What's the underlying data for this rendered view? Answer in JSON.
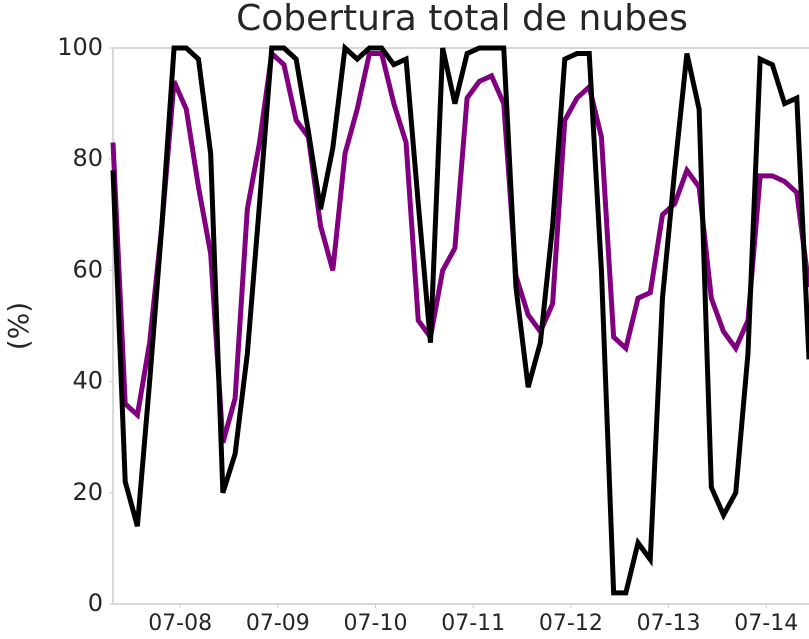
{
  "chart_data": {
    "type": "line",
    "title": "Cobertura total de nubes",
    "ylabel": "(%)",
    "x": [
      0.3125,
      0.4375,
      0.5625,
      0.6875,
      0.8125,
      0.9375,
      1.0625,
      1.1875,
      1.3125,
      1.4375,
      1.5625,
      1.6875,
      1.8125,
      1.9375,
      2.0625,
      2.1875,
      2.3125,
      2.4375,
      2.5625,
      2.6875,
      2.8125,
      2.9375,
      3.0625,
      3.1875,
      3.3125,
      3.4375,
      3.5625,
      3.6875,
      3.8125,
      3.9375,
      4.0625,
      4.1875,
      4.3125,
      4.4375,
      4.5625,
      4.6875,
      4.8125,
      4.9375,
      5.0625,
      5.1875,
      5.3125,
      5.4375,
      5.5625,
      5.6875,
      5.8125,
      5.9375,
      6.0625,
      6.1875,
      6.3125,
      6.4375,
      6.5625,
      6.6875,
      6.8125,
      6.9375,
      7.0625,
      7.1875,
      7.3125,
      7.4375
    ],
    "series": [
      {
        "color": "#800080",
        "values": [
          83,
          36,
          34,
          47,
          68,
          94,
          89,
          75,
          63,
          29,
          37,
          71,
          83,
          99,
          97,
          87,
          84,
          68,
          60,
          81,
          89,
          99,
          99,
          90,
          83,
          51,
          48,
          60,
          64,
          91,
          94,
          95,
          90,
          59,
          52,
          49,
          54,
          87,
          91,
          93,
          84,
          48,
          46,
          55,
          56,
          70,
          72,
          78,
          75,
          55,
          49,
          46,
          51,
          77,
          77,
          76,
          74,
          57
        ]
      },
      {
        "color": "#000000",
        "values": [
          78,
          22,
          14,
          40,
          68,
          100,
          100,
          98,
          81,
          20,
          27,
          45,
          72,
          100,
          100,
          98,
          85,
          71,
          82,
          100,
          98,
          100,
          100,
          97,
          98,
          72,
          47,
          100,
          90,
          99,
          100,
          100,
          100,
          57,
          39,
          47,
          68,
          98,
          99,
          99,
          60,
          2,
          2,
          11,
          8,
          55,
          78,
          99,
          89,
          21,
          16,
          20,
          45,
          98,
          97,
          90,
          91,
          44
        ]
      }
    ],
    "xlim": [
      0.3125,
      7.4375
    ],
    "xticks": [
      {
        "value": 1,
        "label": "07-08"
      },
      {
        "value": 2,
        "label": "07-09"
      },
      {
        "value": 3,
        "label": "07-10"
      },
      {
        "value": 4,
        "label": "07-11"
      },
      {
        "value": 5,
        "label": "07-12"
      },
      {
        "value": 6,
        "label": "07-13"
      },
      {
        "value": 7,
        "label": "07-14"
      }
    ],
    "ylim": [
      0,
      100
    ],
    "yticks": [
      0,
      20,
      40,
      60,
      80,
      100
    ],
    "grid": false
  }
}
